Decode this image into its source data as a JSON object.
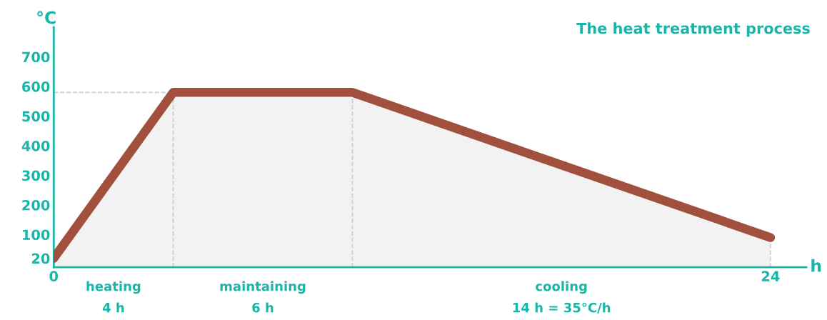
{
  "chart_data": {
    "type": "area",
    "title": "The heat treatment process",
    "ylabel": "°C",
    "xlabel": "h",
    "x": [
      0,
      4,
      10,
      24
    ],
    "series": [
      {
        "color": "#a0503c",
        "values": [
          20,
          580,
          580,
          90
        ]
      }
    ],
    "xlim": [
      0,
      25.2
    ],
    "ylim": [
      -10,
      800
    ],
    "xticks": [
      0,
      24
    ],
    "yticks": [
      20,
      100,
      200,
      300,
      400,
      500,
      600,
      700
    ],
    "grid": false,
    "legend": false,
    "ref_lines": [
      {
        "axis": "y",
        "value": 580,
        "line_style": "dashed",
        "color": "#cccccc"
      },
      {
        "axis": "x",
        "value": 4,
        "line_style": "dashed",
        "color": "#cccccc"
      },
      {
        "axis": "x",
        "value": 10,
        "line_style": "dashed",
        "color": "#cccccc"
      },
      {
        "axis": "x",
        "value": 24,
        "line_style": "dashed",
        "color": "#cccccc"
      }
    ],
    "annotations": [
      "heating\n4 h",
      "maintaining\n6 h",
      "cooling\n14 h = 35°C/h"
    ]
  }
}
